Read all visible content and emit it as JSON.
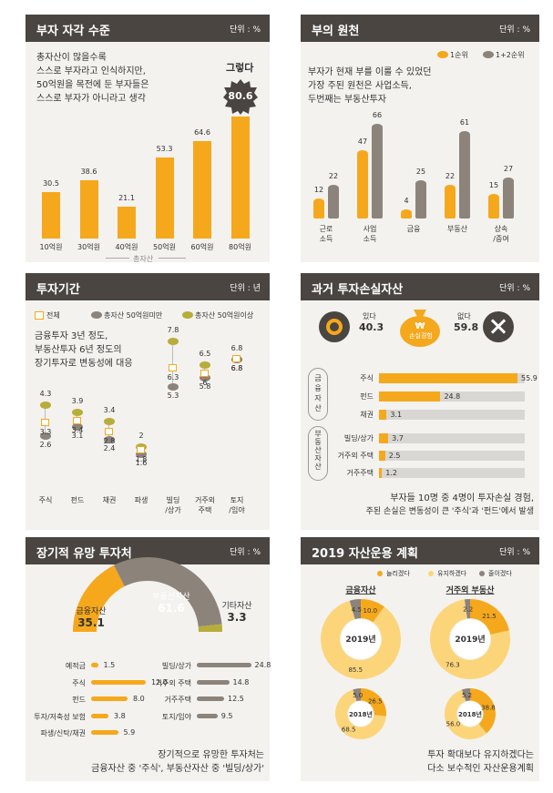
{
  "panels": {
    "p1": {
      "title": "부자 자각 수준",
      "unit": "단위 : %",
      "text": [
        "총자산이 많을수록",
        "스스로 부자라고 인식하지만,",
        "50억원을 목전에 둔 부자들은",
        "스스로 부자가 아니라고 생각"
      ],
      "callout_label": "그렇다",
      "callout_value": "80.6",
      "axis_label": "총자산"
    },
    "p2": {
      "title": "부의 원천",
      "unit": "단위 : %",
      "legend": [
        "1순위",
        "1+2순위"
      ],
      "text": [
        "부자가 현재 부를 이룰 수 있었던",
        "가장 주된 원천은 사업소득,",
        "두번째는 부동산투자"
      ]
    },
    "p3": {
      "title": "투자기간",
      "unit": "단위 : 년",
      "legend": [
        "전체",
        "총자산 50억원미만",
        "총자산 50억원이상"
      ],
      "text": [
        "금융투자 3년 정도,",
        "부동산투자 6년 정도의",
        "장기투자로 변동성에 대응"
      ]
    },
    "p4": {
      "title": "과거 투자손실자산",
      "unit": "단위 : %",
      "yes_label": "있다",
      "yes_value": "40.3",
      "no_label": "없다",
      "no_value": "59.8",
      "bag_label": "손실경험",
      "group1": "금융자산",
      "group2": "부동산자산",
      "note": [
        "부자들 10명 중 4명이 투자손실 경험,",
        "주된 손실은 변동성이 큰 '주식'과 '펀드'에서 발생"
      ]
    },
    "p5": {
      "title": "장기적 유망 투자처",
      "unit": "단위 : %",
      "note": [
        "장기적으로 유망한 투자처는",
        "금융자산 중 '주식', 부동산자산 중 '빌딩/상가'"
      ]
    },
    "p6": {
      "title": "2019 자산운용 계획",
      "unit": "단위 : %",
      "legend": [
        "늘리겠다",
        "유지하겠다",
        "줄이겠다"
      ],
      "note": [
        "투자 확대보다 유지하겠다는",
        "다소 보수적인 자산운용계획"
      ]
    }
  },
  "chart_data": [
    {
      "type": "bar",
      "title": "부자 자각 수준",
      "xlabel": "총자산",
      "categories": [
        "10억원",
        "30억원",
        "40억원",
        "50억원",
        "60억원",
        "80억원"
      ],
      "values": [
        30.5,
        38.6,
        21.1,
        53.3,
        64.6,
        80.6
      ],
      "value_labels": [
        "30.5",
        "38.6",
        "21.1",
        "53.3",
        "64.6",
        "80.6"
      ],
      "ylim": [
        0,
        90
      ]
    },
    {
      "type": "bar",
      "title": "부의 원천",
      "categories": [
        "근로\n소득",
        "사업\n소득",
        "금융",
        "부동산",
        "상속\n/증여"
      ],
      "series": [
        {
          "name": "1순위",
          "values": [
            12,
            47,
            4,
            22,
            15
          ]
        },
        {
          "name": "1+2순위",
          "values": [
            22,
            66,
            25,
            61,
            27
          ]
        }
      ],
      "ylim": [
        0,
        70
      ]
    },
    {
      "type": "scatter",
      "title": "투자기간",
      "categories": [
        "주식",
        "펀드",
        "채권",
        "파생",
        "빌딩\n/상가",
        "거주외\n주택",
        "토지\n/임야"
      ],
      "series": [
        {
          "name": "전체",
          "values": [
            3.3,
            3.4,
            2.8,
            1.8,
            6.3,
            6.0,
            6.8
          ]
        },
        {
          "name": "총자산 50억원미만",
          "values": [
            2.6,
            3.1,
            2.4,
            1.6,
            5.3,
            5.8,
            6.8
          ]
        },
        {
          "name": "총자산 50억원이상",
          "values": [
            4.3,
            3.9,
            3.4,
            2.0,
            7.8,
            6.5,
            6.8
          ]
        }
      ]
    },
    {
      "type": "bar",
      "title": "과거 투자손실자산",
      "orientation": "horizontal",
      "categories": [
        "주식",
        "펀드",
        "채권",
        "빌딩/상가",
        "거주외 주택",
        "거주주택"
      ],
      "values": [
        55.9,
        24.8,
        3.1,
        3.7,
        2.5,
        1.2
      ],
      "xlim": [
        0,
        100
      ]
    },
    {
      "type": "pie",
      "title": "장기적 유망 투자처",
      "slices": [
        {
          "label": "금융자산",
          "value": 35.1
        },
        {
          "label": "부동산자산",
          "value": 61.6
        },
        {
          "label": "기타자산",
          "value": 3.3
        }
      ],
      "financial": {
        "categories": [
          "예적금",
          "주식",
          "펀드",
          "투자/저축성 보험",
          "파생/신탁/채권"
        ],
        "values": [
          1.5,
          12.0,
          8.0,
          3.8,
          5.9
        ]
      },
      "real_estate": {
        "categories": [
          "빌딩/상가",
          "거주외 주택",
          "거주주택",
          "토지/임야"
        ],
        "values": [
          24.8,
          14.8,
          12.5,
          9.5
        ]
      }
    },
    {
      "type": "pie",
      "title": "2019 자산운용 계획",
      "charts": [
        {
          "group": "금융자산",
          "year": "2019년",
          "values": [
            10.0,
            85.5,
            4.5
          ]
        },
        {
          "group": "금융자산",
          "year": "2018년",
          "values": [
            26.5,
            68.5,
            5.0
          ]
        },
        {
          "group": "거주외 부동산",
          "year": "2019년",
          "values": [
            21.5,
            76.3,
            2.2
          ]
        },
        {
          "group": "거주외 부동산",
          "year": "2018년",
          "values": [
            38.8,
            56.0,
            5.2
          ]
        }
      ],
      "series_names": [
        "늘리겠다",
        "유지하겠다",
        "줄이겠다"
      ]
    }
  ],
  "colors": {
    "header": "#4a4541",
    "panel": "#f3f2ef",
    "yellow": "#f5a81c",
    "light": "#fcd57a",
    "gray": "#8c837b"
  }
}
